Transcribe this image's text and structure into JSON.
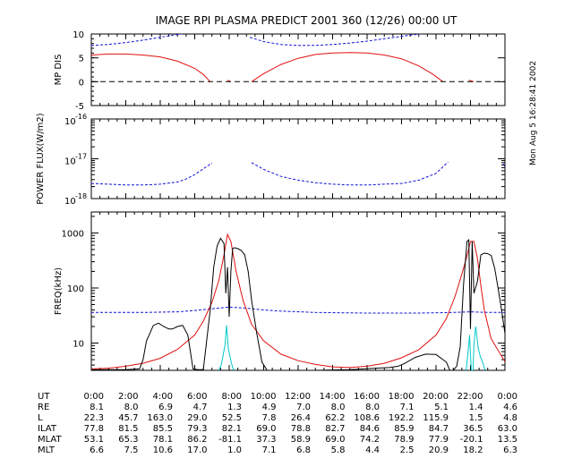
{
  "title": "IMAGE  RPI PLASMA PREDICT 2001 360 (12/26) 00:00 UT",
  "timestamp": "Mon Aug  5 16:28:41 2002",
  "colors": {
    "blue": "#1010d8",
    "red": "#e01010",
    "black": "#000000",
    "cyan": "#00c8c8"
  },
  "chart_data": [
    {
      "type": "line",
      "panel": "mp_dis",
      "ylabel": "MP DIS",
      "ylim": [
        -5,
        10
      ],
      "yticks": [
        -5,
        0,
        5,
        10
      ],
      "ytick_labels": [
        "-5",
        "0",
        "5",
        "10"
      ],
      "xlim": [
        0,
        24
      ],
      "series": [
        {
          "color": "blue",
          "style": "dashed",
          "x": [
            0,
            1,
            2,
            3,
            4,
            5,
            6
          ],
          "y": [
            7.6,
            7.8,
            8.2,
            8.7,
            9.3,
            9.9,
            10.4
          ]
        },
        {
          "color": "blue",
          "style": "dashed",
          "x": [
            9.2,
            10,
            11,
            12,
            13,
            14,
            15,
            16,
            17,
            18,
            19,
            20
          ],
          "y": [
            9.3,
            8.4,
            7.8,
            7.6,
            7.6,
            7.8,
            8.1,
            8.5,
            9.0,
            9.5,
            10.0,
            10.4
          ]
        },
        {
          "color": "red",
          "style": "solid",
          "x": [
            0,
            1,
            2,
            3,
            4,
            5,
            6,
            6.5,
            6.9
          ],
          "y": [
            5.6,
            5.8,
            5.8,
            5.6,
            5.2,
            4.3,
            2.8,
            1.5,
            0
          ]
        },
        {
          "color": "red",
          "style": "solid",
          "x": [
            7.9,
            8.1
          ],
          "y": [
            0.3,
            0
          ]
        },
        {
          "color": "red",
          "style": "solid",
          "x": [
            9.3,
            10,
            11,
            12,
            13,
            14,
            15,
            16,
            17,
            18,
            19,
            19.8,
            20.4
          ],
          "y": [
            0,
            1.7,
            3.6,
            4.9,
            5.7,
            6.0,
            6.1,
            6.0,
            5.6,
            4.8,
            3.3,
            1.6,
            0
          ]
        },
        {
          "color": "red",
          "style": "solid",
          "x": [
            21.9,
            22.2
          ],
          "y": [
            0.3,
            0
          ]
        },
        {
          "color": "black",
          "style": "dashed",
          "x": [
            0,
            24
          ],
          "y": [
            0,
            0
          ]
        }
      ]
    },
    {
      "type": "line",
      "panel": "power_flux",
      "ylabel": "POWER FLUX(W/m2)",
      "yscale": "log",
      "ylim": [
        1e-18,
        1e-16
      ],
      "ytick_labels": [
        "10",
        "10",
        "10"
      ],
      "ytick_exponents": [
        "-16",
        "-17",
        "-18"
      ],
      "xlim": [
        0,
        24
      ],
      "series": [
        {
          "color": "blue",
          "style": "dashed",
          "x": [
            0,
            1,
            2,
            3,
            4,
            5,
            5.5,
            6,
            6.5,
            7.0
          ],
          "y": [
            2.4e-18,
            2.3e-18,
            2.2e-18,
            2.2e-18,
            2.3e-18,
            2.6e-18,
            3.1e-18,
            4e-18,
            5.6e-18,
            7.9e-18
          ]
        },
        {
          "color": "blue",
          "style": "dashed",
          "x": [
            9.3,
            10,
            11,
            12,
            13,
            14,
            15,
            16,
            17,
            18,
            19,
            20,
            20.7
          ],
          "y": [
            8e-18,
            5.4e-18,
            3.6e-18,
            2.9e-18,
            2.5e-18,
            2.3e-18,
            2.2e-18,
            2.2e-18,
            2.3e-18,
            2.4e-18,
            2.9e-18,
            4.3e-18,
            8.3e-18
          ]
        },
        {
          "color": "blue",
          "style": "dashed",
          "x": [
            23.9,
            24
          ],
          "y": [
            7.5e-18,
            6.3e-18
          ]
        }
      ]
    },
    {
      "type": "line",
      "panel": "freq",
      "ylabel": "FREQ(kHz)",
      "yscale": "log",
      "ylim": [
        3.2,
        2400
      ],
      "yticks": [
        10,
        100,
        1000
      ],
      "ytick_labels": [
        "10",
        "100",
        "1000"
      ],
      "xlim": [
        0,
        24
      ],
      "series": [
        {
          "color": "blue",
          "style": "dashed",
          "x": [
            0,
            3,
            5,
            6,
            7,
            8,
            9,
            10,
            11,
            13,
            16,
            19,
            21,
            22,
            23,
            24
          ],
          "y": [
            36,
            36,
            37,
            39,
            42,
            45,
            43,
            40,
            38,
            36,
            35,
            35,
            36,
            37,
            36,
            36
          ]
        },
        {
          "color": "red",
          "style": "solid",
          "x": [
            0,
            1,
            2,
            3,
            4,
            5,
            6,
            6.5,
            7,
            7.4,
            7.7,
            7.9,
            8.1,
            8.4,
            8.8,
            9.3,
            10,
            11,
            12,
            13,
            14,
            15,
            16,
            17,
            18,
            19,
            20,
            20.6,
            21.1,
            21.5,
            21.8,
            22.0,
            22.2,
            22.4,
            22.6,
            22.8,
            23.2,
            24
          ],
          "y": [
            3.4,
            3.5,
            3.8,
            4.3,
            5.3,
            7.7,
            14,
            25,
            55,
            140,
            400,
            940,
            700,
            200,
            60,
            22,
            11,
            6.3,
            4.8,
            4.1,
            3.7,
            3.6,
            3.8,
            4.3,
            5.4,
            7.6,
            14,
            28,
            70,
            180,
            380,
            700,
            700,
            350,
            110,
            40,
            12,
            4.6
          ]
        },
        {
          "color": "black",
          "style": "solid",
          "x": [
            0,
            2,
            2.8,
            3.0,
            3.2,
            3.4,
            3.6,
            3.9,
            4.2,
            4.5,
            4.7,
            5.0,
            5.3,
            5.6,
            5.9,
            6.2,
            6.5,
            6.9,
            7.1,
            7.3,
            7.5,
            7.7,
            7.8,
            7.9,
            8.0,
            8.1,
            8.2,
            8.3,
            8.5,
            8.7,
            8.9,
            9.1,
            9.3,
            9.6,
            9.9,
            10.2,
            11,
            13,
            15,
            16.5,
            17.3,
            17.8,
            18.2,
            18.8,
            19.4,
            20,
            20.6,
            20.8,
            21.0,
            21.2,
            21.4,
            21.6,
            21.8,
            21.9,
            22.0,
            22.1,
            22.2,
            22.4,
            22.6,
            22.8,
            23.0,
            23.2,
            23.4,
            23.6,
            23.8,
            24
          ],
          "y": [
            3.3,
            3.3,
            3.4,
            5.0,
            11,
            15,
            21,
            23,
            20,
            18,
            18,
            20,
            21,
            14,
            3.4,
            3.3,
            3.3,
            40,
            240,
            580,
            800,
            640,
            80,
            240,
            30,
            200,
            520,
            540,
            520,
            480,
            400,
            200,
            60,
            15,
            4.5,
            3.2,
            3.2,
            3.2,
            3.3,
            3.5,
            3.6,
            3.8,
            4.3,
            5.5,
            6.3,
            6.2,
            4.5,
            3.2,
            3.2,
            3.8,
            8.5,
            120,
            700,
            750,
            18,
            700,
            80,
            130,
            400,
            430,
            420,
            390,
            230,
            100,
            40,
            15
          ]
        },
        {
          "color": "cyan",
          "style": "solid",
          "x": [
            7.4,
            7.55,
            7.75,
            7.85,
            7.95,
            8.1,
            8.2,
            8.3
          ],
          "y": [
            3.2,
            4.1,
            9,
            21,
            8,
            4.8,
            3.6,
            3.2
          ]
        },
        {
          "color": "cyan",
          "style": "solid",
          "x": [
            21.75,
            21.85,
            21.95,
            22.0,
            22.05,
            22.1,
            22.15
          ],
          "y": [
            3.2,
            6.5,
            14,
            6,
            3.2,
            3.2,
            3.2
          ]
        },
        {
          "color": "cyan",
          "style": "solid",
          "x": [
            22.15,
            22.2,
            22.3,
            22.4,
            22.45,
            22.55,
            22.7,
            22.85
          ],
          "y": [
            3.2,
            9,
            20,
            11,
            8,
            6,
            4.5,
            3.2
          ]
        }
      ]
    }
  ],
  "orbit_table": {
    "rows": [
      {
        "label": "UT",
        "values": [
          "0:00",
          "2:00",
          "4:00",
          "6:00",
          "8:00",
          "10:00",
          "12:00",
          "14:00",
          "16:00",
          "18:00",
          "20:00",
          "22:00",
          "0:00"
        ]
      },
      {
        "label": "RE",
        "values": [
          "8.1",
          "8.0",
          "6.9",
          "4.7",
          "1.3",
          "4.9",
          "7.0",
          "8.0",
          "8.0",
          "7.1",
          "5.1",
          "1.4",
          "4.6"
        ]
      },
      {
        "label": "L",
        "values": [
          "22.3",
          "45.7",
          "163.0",
          "29.0",
          "52.5",
          "7.8",
          "26.4",
          "62.2",
          "108.6",
          "192.2",
          "115.9",
          "1.5",
          "4.8"
        ]
      },
      {
        "label": "ILAT",
        "values": [
          "77.8",
          "81.5",
          "85.5",
          "79.3",
          "82.1",
          "69.0",
          "78.8",
          "82.7",
          "84.6",
          "85.9",
          "84.7",
          "36.5",
          "63.0"
        ]
      },
      {
        "label": "MLAT",
        "values": [
          "53.1",
          "65.3",
          "78.1",
          "86.2",
          "-81.1",
          "37.3",
          "58.9",
          "69.0",
          "74.2",
          "78.9",
          "77.9",
          "-20.1",
          "13.5"
        ]
      },
      {
        "label": "MLT",
        "values": [
          "6.6",
          "7.5",
          "10.6",
          "17.0",
          "1.0",
          "7.1",
          "6.8",
          "5.8",
          "4.4",
          "2.5",
          "20.9",
          "18.2",
          "6.3"
        ]
      }
    ]
  }
}
